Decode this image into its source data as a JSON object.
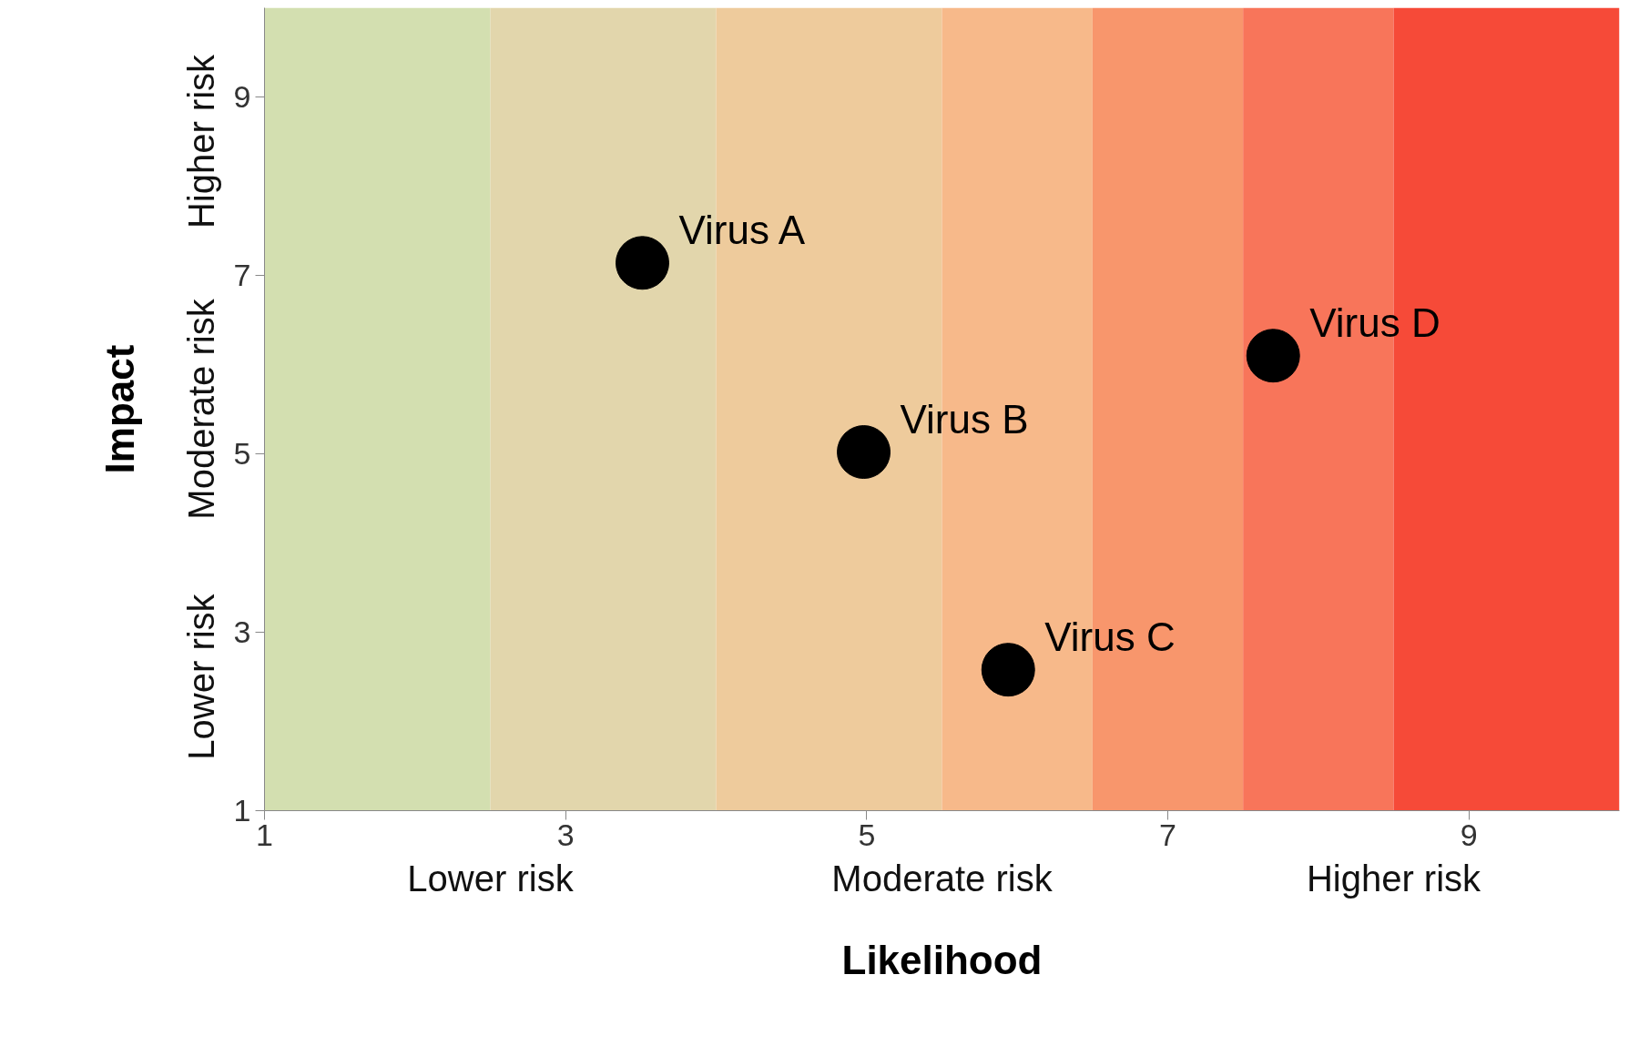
{
  "chart_data": {
    "type": "scatter",
    "xlabel": "Likelihood",
    "ylabel": "Impact",
    "xlim": [
      1,
      10
    ],
    "ylim": [
      1,
      10
    ],
    "xticks": [
      1,
      3,
      5,
      7,
      9
    ],
    "yticks": [
      1,
      3,
      5,
      7,
      9
    ],
    "grid": false,
    "legend": false,
    "marker": "circle",
    "series": [
      {
        "name": "Virus A",
        "color": "#000000",
        "x": [
          3.51
        ],
        "values": [
          7.14
        ]
      },
      {
        "name": "Virus B",
        "color": "#000000",
        "x": [
          4.98
        ],
        "values": [
          5.02
        ]
      },
      {
        "name": "Virus C",
        "color": "#000000",
        "x": [
          5.94
        ],
        "values": [
          2.58
        ]
      },
      {
        "name": "Virus D",
        "color": "#000000",
        "x": [
          7.7
        ],
        "values": [
          6.1
        ]
      }
    ],
    "bands": [
      {
        "axis": "x",
        "from": 1,
        "to": 2.5,
        "color": "#d3dfb0"
      },
      {
        "axis": "x",
        "from": 2.5,
        "to": 4,
        "color": "#e2d6ac"
      },
      {
        "axis": "x",
        "from": 4,
        "to": 5.5,
        "color": "#eecb9c"
      },
      {
        "axis": "x",
        "from": 5.5,
        "to": 6.5,
        "color": "#f7b98a"
      },
      {
        "axis": "x",
        "from": 6.5,
        "to": 7.5,
        "color": "#f8966c"
      },
      {
        "axis": "x",
        "from": 7.5,
        "to": 8.5,
        "color": "#f8755a"
      },
      {
        "axis": "x",
        "from": 8.5,
        "to": 10,
        "color": "#f64a38"
      }
    ],
    "annotations": [
      "Lower risk",
      "Moderate risk",
      "Higher risk",
      "Lower risk",
      "Moderate risk",
      "Higher risk"
    ]
  }
}
